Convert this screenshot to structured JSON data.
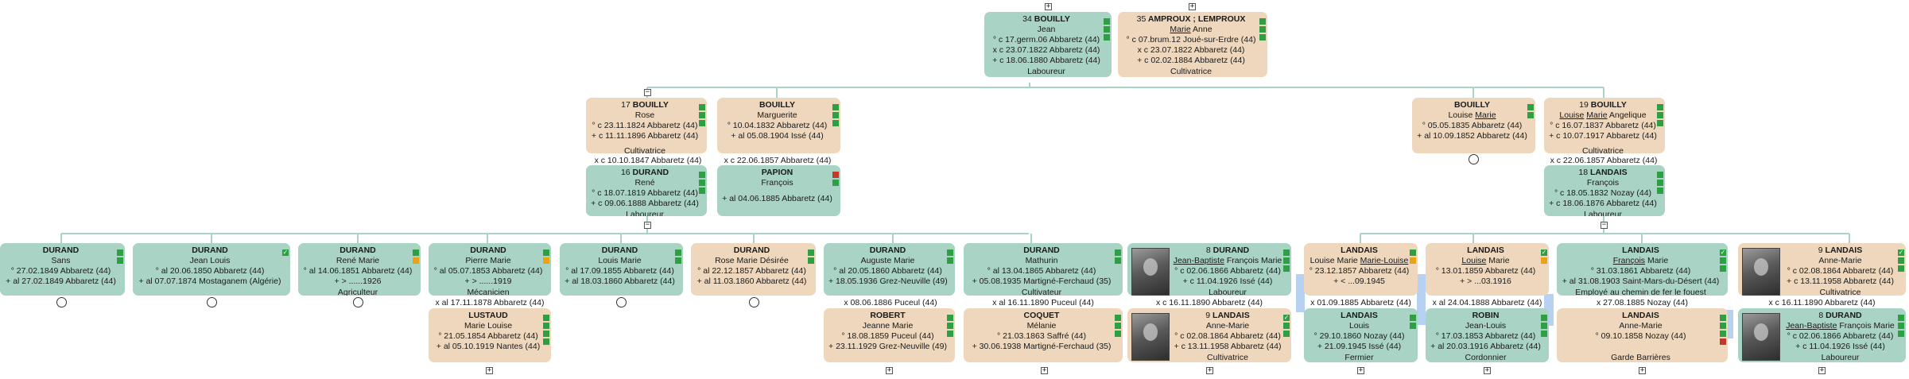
{
  "colors": {
    "male": "#a9d3c5",
    "female": "#eed7bd",
    "line": "#a9d3c5",
    "highlight": "#a9c9ef"
  },
  "toggles": {
    "expand": "+",
    "collapse": "−"
  },
  "gen1": {
    "p34": {
      "num": "34",
      "surname": "BOUILLY",
      "first": "Jean",
      "e1": "° c 17.germ.06 Abbaretz (44)",
      "e2": "x c 23.07.1822 Abbaretz (44)",
      "e3": "+ c 18.06.1880 Abbaretz (44)",
      "occ": "Laboureur"
    },
    "p35": {
      "num": "35",
      "surname": "AMPROUX ; LEMPROUX",
      "first_u": "Marie",
      "first_rest": " Anne",
      "e1": "° c 07.brum.12 Joué-sur-Erdre (44)",
      "e2": "x c 23.07.1822 Abbaretz (44)",
      "e3": "+ c 02.02.1884 Abbaretz (44)",
      "occ": "Cultivatrice"
    }
  },
  "gen2": {
    "p17": {
      "num": "17",
      "surname": "BOUILLY",
      "first": "Rose",
      "e1": "° c 23.11.1824 Abbaretz (44)",
      "e2": "+ c 11.11.1896 Abbaretz (44)",
      "occ": "Cultivatrice"
    },
    "marg": {
      "surname": "BOUILLY",
      "first": "Marguerite",
      "e1": "° 10.04.1832 Abbaretz (44)",
      "e2": "+ al 05.08.1904 Issé (44)"
    },
    "louise_b": {
      "surname": "BOUILLY",
      "first_a": "Louise ",
      "first_u": "Marie",
      "e1": "° 05.05.1835 Abbaretz (44)",
      "e2": "+ al 10.09.1852 Abbaretz (44)"
    },
    "p19": {
      "num": "19",
      "surname": "BOUILLY",
      "first_u": "Louise",
      "first_mid": " ",
      "first_u2": "Marie",
      "first_rest": " Angelique",
      "e1": "° c 16.07.1837 Abbaretz (44)",
      "e2": "+ c 10.07.1917 Abbaretz (44)",
      "occ": "Cultivatrice"
    },
    "m1": "x c 10.10.1847 Abbaretz (44)",
    "m2": "x c 22.06.1857 Abbaretz (44)",
    "m3": "x c 22.06.1857 Abbaretz (44)",
    "p16": {
      "num": "16",
      "surname": "DURAND",
      "first": "René",
      "e1": "° c 18.07.1819 Abbaretz (44)",
      "e2": "+ c 09.06.1888 Abbaretz (44)",
      "occ": "Laboureur"
    },
    "papion": {
      "surname": "PAPION",
      "first": "François",
      "e1": "+ al 04.06.1885 Abbaretz (44)"
    },
    "p18": {
      "num": "18",
      "surname": "LANDAIS",
      "first": "François",
      "e1": "° c 18.05.1832 Nozay (44)",
      "e2": "+ c 18.06.1876 Abbaretz (44)",
      "occ": "Laboureur"
    }
  },
  "gen3": {
    "c1": {
      "surname": "DURAND",
      "first": "Sans",
      "e1": "° 27.02.1849 Abbaretz (44)",
      "e2": "+ al 27.02.1849 Abbaretz (44)"
    },
    "c2": {
      "surname": "DURAND",
      "first": "Jean Louis",
      "e1": "° al 20.06.1850 Abbaretz (44)",
      "e2": "+ al 07.07.1874 Mostaganem (Algérie)"
    },
    "c3": {
      "surname": "DURAND",
      "first": "René Marie",
      "e1": "° al 14.06.1851 Abbaretz (44)",
      "e2": "+ > ......1926",
      "occ": "Agriculteur"
    },
    "c4": {
      "surname": "DURAND",
      "first": "Pierre Marie",
      "e1": "° al 05.07.1853 Abbaretz (44)",
      "e2": "+ > ......1919",
      "occ": "Mécanicien"
    },
    "c5": {
      "surname": "DURAND",
      "first": "Louis Marie",
      "e1": "° al 17.09.1855 Abbaretz (44)",
      "e2": "+ al 18.03.1860 Abbaretz (44)"
    },
    "c6": {
      "surname": "DURAND",
      "first": "Rose Marie Désirée",
      "e1": "° al 22.12.1857 Abbaretz (44)",
      "e2": "+ al 11.03.1860 Abbaretz (44)"
    },
    "c7": {
      "surname": "DURAND",
      "first": "Auguste Marie",
      "e1": "° al 20.05.1860 Abbaretz (44)",
      "e2": "+ 18.05.1936 Grez-Neuville (49)"
    },
    "c8": {
      "surname": "DURAND",
      "first": "Mathurin",
      "e1": "° al 13.04.1865 Abbaretz (44)",
      "e2": "+ 05.08.1935 Martigné-Ferchaud (35)",
      "occ": "Cultivateur"
    },
    "c9": {
      "num": "8",
      "surname": "DURAND",
      "first_u": "Jean-Baptiste",
      "first_rest": " François Marie",
      "e1": "° c 02.06.1866 Abbaretz (44)",
      "e2": "+ c 11.04.1926 Issé (44)",
      "occ": "Laboureur"
    },
    "c10": {
      "surname": "LANDAIS",
      "first_a": "Louise Marie ",
      "first_u": "Marie-Louise",
      "e1": "° 23.12.1857 Abbaretz (44)",
      "e2": "+ < ...09.1945"
    },
    "c11": {
      "surname": "LANDAIS",
      "first_a": "",
      "first_u": "Louise",
      "first_rest": " Marie",
      "e1": "° 13.01.1859 Abbaretz (44)",
      "e2": "+ > ...03.1916"
    },
    "c12": {
      "surname": "LANDAIS",
      "first_u": "François",
      "first_rest": " Marie",
      "e1": "° 31.03.1861 Abbaretz (44)",
      "e2": "+ al 31.08.1903 Saint-Mars-du-Désert (44)",
      "occ": "Employé au chemin de fer le fouest"
    },
    "c13": {
      "num": "9",
      "surname": "LANDAIS",
      "first": "Anne-Marie",
      "e1": "° c 02.08.1864 Abbaretz (44)",
      "e2": "+ c 13.11.1958 Abbaretz (44)",
      "occ": "Cultivatrice"
    }
  },
  "marriages3": {
    "m4": "x al 17.11.1878 Abbaretz (44)",
    "m7": "x 08.06.1886 Puceul (44)",
    "m8": "x al 16.11.1890 Puceul (44)",
    "m9": "x c 16.11.1890 Abbaretz (44)",
    "m10": "x 01.09.1885 Abbaretz (44)",
    "m11": "x al 24.04.1888 Abbaretz (44)",
    "m12": "x 27.08.1885 Nozay (44)",
    "m13": "x c 16.11.1890 Abbaretz (44)"
  },
  "spouses": {
    "s4": {
      "surname": "LUSTAUD",
      "first": "Marie Louise",
      "e1": "° 21.05.1854 Abbaretz (44)",
      "e2": "+ al 05.10.1919 Nantes (44)"
    },
    "s7": {
      "surname": "ROBERT",
      "first": "Jeanne Marie",
      "e1": "° 18.08.1859 Puceul (44)",
      "e2": "+ 23.11.1929 Grez-Neuville (49)"
    },
    "s8": {
      "surname": "COQUET",
      "first": "Mélanie",
      "e1": "° 21.03.1863 Saffré (44)",
      "e2": "+ 30.06.1938 Martigné-Ferchaud (35)"
    },
    "s9": {
      "num": "9",
      "surname": "LANDAIS",
      "first": "Anne-Marie",
      "e1": "° c 02.08.1864 Abbaretz (44)",
      "e2": "+ c 13.11.1958 Abbaretz (44)",
      "occ": "Cultivatrice"
    },
    "s10": {
      "surname": "LANDAIS",
      "first": "Louis",
      "e1": "° 29.10.1860 Nozay (44)",
      "e2": "+ 21.09.1945 Issé (44)",
      "occ": "Fermier"
    },
    "s11": {
      "surname": "ROBIN",
      "first": "Jean-Louis",
      "e1": "° 17.03.1853 Abbaretz (44)",
      "e2": "+ al 20.03.1916 Abbaretz (44)",
      "occ": "Cordonnier"
    },
    "s12": {
      "surname": "LANDAIS",
      "first": "Anne-Marie",
      "e1": "° 09.10.1858 Nozay (44)",
      "occ": "Garde Barrières"
    },
    "s13": {
      "num": "8",
      "surname": "DURAND",
      "first_u": "Jean-Baptiste",
      "first_rest": " François Marie",
      "e1": "° c 02.06.1866 Abbaretz (44)",
      "e2": "+ c 11.04.1926 Issé (44)",
      "occ": "Laboureur"
    }
  }
}
